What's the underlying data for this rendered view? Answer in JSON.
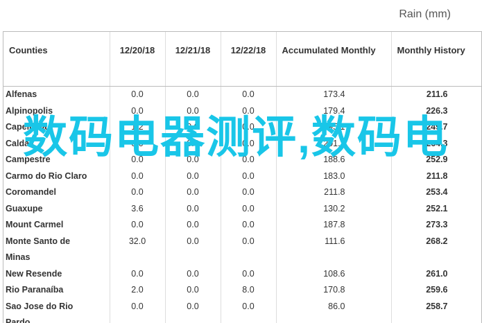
{
  "header": {
    "title": "Rain (mm)"
  },
  "table": {
    "columns": [
      "Counties",
      "12/20/18",
      "12/21/18",
      "12/22/18",
      "Accumulated Monthly",
      "Monthly History"
    ],
    "rows": [
      [
        "Alfenas",
        "0.0",
        "0.0",
        "0.0",
        "173.4",
        "211.6"
      ],
      [
        "Alpinopolis",
        "0.0",
        "0.0",
        "0.0",
        "179.4",
        "226.3"
      ],
      [
        "Capelinha",
        "1.2",
        "0.0",
        "0.0",
        "195.1",
        "249.7"
      ],
      [
        "Caldas",
        "0.0",
        "0.0",
        "0.0",
        "201.7",
        "264.3"
      ],
      [
        "Campestre",
        "0.0",
        "0.0",
        "0.0",
        "188.6",
        "252.9"
      ],
      [
        "Carmo do Rio Claro",
        "0.0",
        "0.0",
        "0.0",
        "183.0",
        "211.8"
      ],
      [
        "Coromandel",
        "0.0",
        "0.0",
        "0.0",
        "211.8",
        "253.4"
      ],
      [
        "Guaxupe",
        "3.6",
        "0.0",
        "0.0",
        "130.2",
        "252.1"
      ],
      [
        "Mount Carmel",
        "0.0",
        "0.0",
        "0.0",
        "187.8",
        "273.3"
      ],
      [
        "Monte Santo de Minas",
        "32.0",
        "0.0",
        "0.0",
        "111.6",
        "268.2"
      ],
      [
        "New Resende",
        "0.0",
        "0.0",
        "0.0",
        "108.6",
        "261.0"
      ],
      [
        "Rio Paranaíba",
        "2.0",
        "0.0",
        "8.0",
        "170.8",
        "259.6"
      ],
      [
        "Sao Jose do Rio Pardo",
        "0.0",
        "0.0",
        "0.0",
        "86.0",
        "258.7"
      ]
    ]
  },
  "watermark": "数码电器测评,数码电"
}
